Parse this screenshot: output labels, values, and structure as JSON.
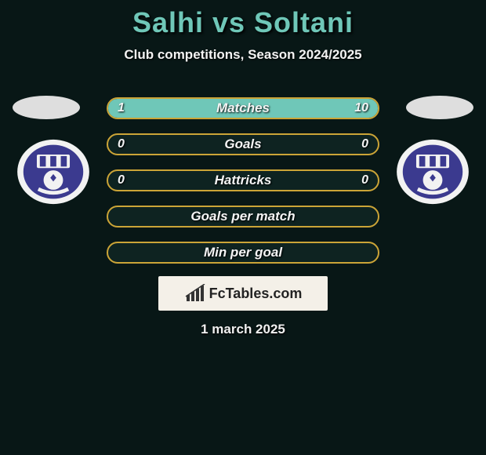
{
  "title": "Salhi vs Soltani",
  "subtitle": "Club competitions, Season 2024/2025",
  "colors": {
    "background": "#081716",
    "title": "#6fc7b8",
    "bar_border": "#cba437",
    "bar_fill": "#6fc7b8",
    "bar_bg": "#0e2321",
    "text": "#f4f4f4",
    "badge_primary": "#3b3a8f",
    "badge_white": "#f2f2f2"
  },
  "players": {
    "left": {
      "name": "Salhi"
    },
    "right": {
      "name": "Soltani"
    }
  },
  "bars": [
    {
      "label": "Matches",
      "left_val": "1",
      "right_val": "10",
      "left_pct": 9,
      "right_pct": 91
    },
    {
      "label": "Goals",
      "left_val": "0",
      "right_val": "0",
      "left_pct": 0,
      "right_pct": 0
    },
    {
      "label": "Hattricks",
      "left_val": "0",
      "right_val": "0",
      "left_pct": 0,
      "right_pct": 0
    },
    {
      "label": "Goals per match",
      "left_val": "",
      "right_val": "",
      "left_pct": 0,
      "right_pct": 0
    },
    {
      "label": "Min per goal",
      "left_val": "",
      "right_val": "",
      "left_pct": 0,
      "right_pct": 0
    }
  ],
  "brand": "FcTables.com",
  "date": "1 march 2025"
}
